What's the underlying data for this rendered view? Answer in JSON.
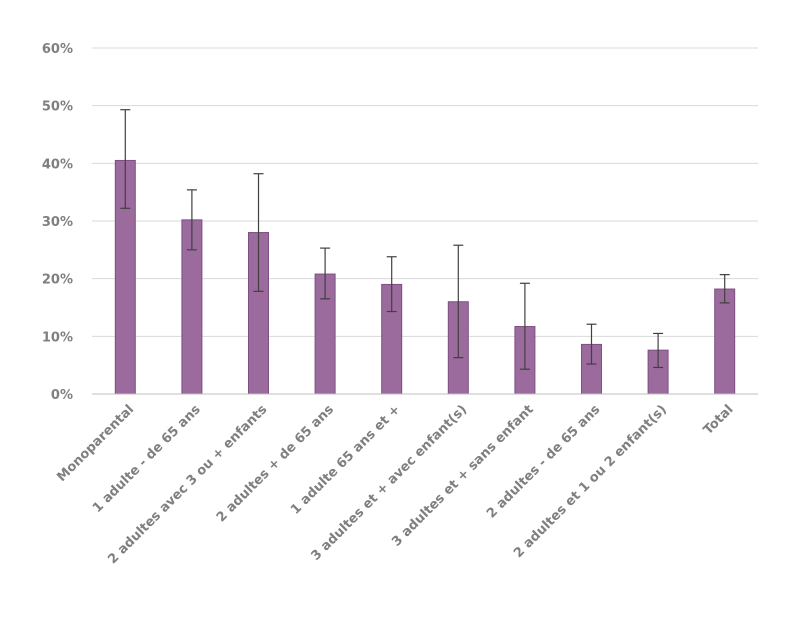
{
  "chart_data": {
    "type": "bar",
    "title": "",
    "xlabel": "",
    "ylabel": "",
    "ylim": [
      0,
      60
    ],
    "yticks": [
      0,
      10,
      20,
      30,
      40,
      50,
      60
    ],
    "ytick_labels": [
      "0%",
      "10%",
      "20%",
      "30%",
      "40%",
      "50%",
      "60%"
    ],
    "grid": true,
    "legend": "none",
    "bar_color": "#9b6b9e",
    "bar_edge_color": "#7e4f82",
    "categories": [
      "Monoparental",
      "1 adulte - de 65 ans",
      "2 adultes avec 3 ou + enfants",
      "2 adultes + de 65 ans",
      "1 adulte 65 ans et +",
      "3 adultes et + avec enfant(s)",
      "3 adultes et + sans enfant",
      "2 adultes - de 65 ans",
      "2 adultes et 1 ou 2 enfant(s)",
      "Total"
    ],
    "values": [
      40.5,
      30.2,
      28.0,
      20.8,
      19.0,
      16.0,
      11.7,
      8.6,
      7.6,
      18.2
    ],
    "error_low": [
      32.2,
      25.0,
      17.8,
      16.5,
      14.3,
      6.3,
      4.3,
      5.2,
      4.6,
      15.8
    ],
    "error_high": [
      49.3,
      35.4,
      38.2,
      25.3,
      23.8,
      25.8,
      19.2,
      12.1,
      10.5,
      20.7
    ]
  }
}
